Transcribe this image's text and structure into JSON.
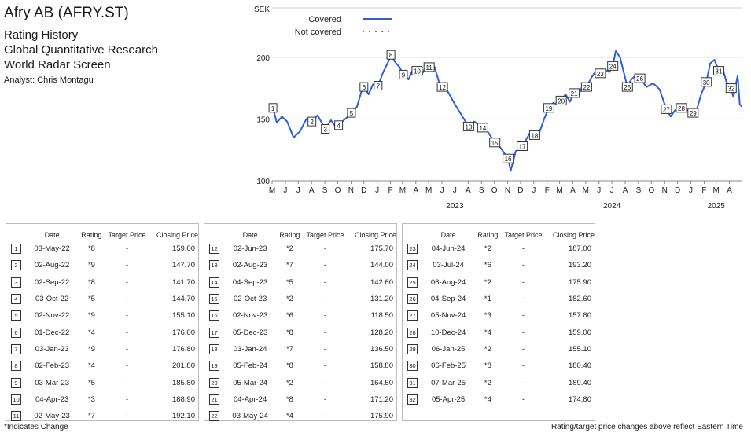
{
  "header": {
    "title": "Afry AB (AFRY.ST)",
    "subtitle1": "Rating History",
    "subtitle2": "Global Quantitative Research",
    "subtitle3": "World Radar Screen",
    "analyst": "Analyst: Chris Montagu"
  },
  "table_headers": [
    "Date",
    "Rating",
    "Target Price",
    "Closing Price"
  ],
  "ratings": [
    {
      "n": "1",
      "date": "03-May-22",
      "rating": "*8",
      "target": "-",
      "close": "159.00"
    },
    {
      "n": "2",
      "date": "02-Aug-22",
      "rating": "*9",
      "target": "-",
      "close": "147.70"
    },
    {
      "n": "3",
      "date": "02-Sep-22",
      "rating": "*8",
      "target": "-",
      "close": "141.70"
    },
    {
      "n": "4",
      "date": "03-Oct-22",
      "rating": "*5",
      "target": "-",
      "close": "144.70"
    },
    {
      "n": "5",
      "date": "02-Nov-22",
      "rating": "*9",
      "target": "-",
      "close": "155.10"
    },
    {
      "n": "6",
      "date": "01-Dec-22",
      "rating": "*4",
      "target": "-",
      "close": "176.00"
    },
    {
      "n": "7",
      "date": "03-Jan-23",
      "rating": "*9",
      "target": "-",
      "close": "176.80"
    },
    {
      "n": "8",
      "date": "02-Feb-23",
      "rating": "*4",
      "target": "-",
      "close": "201.80"
    },
    {
      "n": "9",
      "date": "03-Mar-23",
      "rating": "*5",
      "target": "-",
      "close": "185.80"
    },
    {
      "n": "10",
      "date": "04-Apr-23",
      "rating": "*3",
      "target": "-",
      "close": "188.90"
    },
    {
      "n": "11",
      "date": "02-May-23",
      "rating": "*7",
      "target": "-",
      "close": "192.10"
    },
    {
      "n": "12",
      "date": "02-Jun-23",
      "rating": "*2",
      "target": "-",
      "close": "175.70"
    },
    {
      "n": "13",
      "date": "02-Aug-23",
      "rating": "*7",
      "target": "-",
      "close": "144.00"
    },
    {
      "n": "14",
      "date": "04-Sep-23",
      "rating": "*5",
      "target": "-",
      "close": "142.60"
    },
    {
      "n": "15",
      "date": "02-Oct-23",
      "rating": "*2",
      "target": "-",
      "close": "131.20"
    },
    {
      "n": "16",
      "date": "02-Nov-23",
      "rating": "*6",
      "target": "-",
      "close": "118.50"
    },
    {
      "n": "17",
      "date": "05-Dec-23",
      "rating": "*8",
      "target": "-",
      "close": "128.20"
    },
    {
      "n": "18",
      "date": "03-Jan-24",
      "rating": "*7",
      "target": "-",
      "close": "136.50"
    },
    {
      "n": "19",
      "date": "05-Feb-24",
      "rating": "*8",
      "target": "-",
      "close": "158.80"
    },
    {
      "n": "20",
      "date": "05-Mar-24",
      "rating": "*2",
      "target": "-",
      "close": "164.50"
    },
    {
      "n": "21",
      "date": "04-Apr-24",
      "rating": "*8",
      "target": "-",
      "close": "171.20"
    },
    {
      "n": "22",
      "date": "03-May-24",
      "rating": "*4",
      "target": "-",
      "close": "175.90"
    },
    {
      "n": "23",
      "date": "04-Jun-24",
      "rating": "*2",
      "target": "-",
      "close": "187.00"
    },
    {
      "n": "24",
      "date": "03-Jul-24",
      "rating": "*6",
      "target": "-",
      "close": "193.20"
    },
    {
      "n": "25",
      "date": "06-Aug-24",
      "rating": "*2",
      "target": "-",
      "close": "175.90"
    },
    {
      "n": "26",
      "date": "04-Sep-24",
      "rating": "*1",
      "target": "-",
      "close": "182.60"
    },
    {
      "n": "27",
      "date": "05-Nov-24",
      "rating": "*3",
      "target": "-",
      "close": "157.80"
    },
    {
      "n": "28",
      "date": "10-Dec-24",
      "rating": "*4",
      "target": "-",
      "close": "159.00"
    },
    {
      "n": "29",
      "date": "06-Jan-25",
      "rating": "*2",
      "target": "-",
      "close": "155.10"
    },
    {
      "n": "30",
      "date": "06-Feb-25",
      "rating": "*8",
      "target": "-",
      "close": "180.40"
    },
    {
      "n": "31",
      "date": "07-Mar-25",
      "rating": "*2",
      "target": "-",
      "close": "189.40"
    },
    {
      "n": "32",
      "date": "05-Apr-25",
      "rating": "*4",
      "target": "-",
      "close": "174.80"
    }
  ],
  "footer": {
    "left": "*Indicates Change",
    "right": "Rating/target price changes above reflect Eastern Time"
  },
  "chart_data": {
    "type": "line",
    "ylabel": "SEK",
    "ylim": [
      100,
      240
    ],
    "yticks": [
      100,
      150,
      200
    ],
    "xlim": [
      "2022-05-01",
      "2025-05-01"
    ],
    "month_ticks": [
      "M",
      "J",
      "J",
      "A",
      "S",
      "O",
      "N",
      "D",
      "J",
      "F",
      "M",
      "A",
      "M",
      "J",
      "J",
      "A",
      "S",
      "O",
      "N",
      "D",
      "J",
      "F",
      "M",
      "A",
      "M",
      "J",
      "J",
      "A",
      "S",
      "O",
      "N",
      "D",
      "J",
      "F",
      "M",
      "A"
    ],
    "year_labels": [
      {
        "label": "2023",
        "date": "2023-07-01"
      },
      {
        "label": "2024",
        "date": "2024-07-01"
      },
      {
        "label": "2025",
        "date": "2025-03-01"
      }
    ],
    "grid": "horizontal",
    "legend": [
      {
        "name": "Covered",
        "style": "solid",
        "color": "#2f5fd6"
      },
      {
        "name": "Not covered",
        "style": "dotted",
        "color": "#e3413a"
      }
    ],
    "legend_position": "top-left",
    "series": [
      {
        "name": "Covered",
        "color": "#2f5fd6",
        "points": [
          [
            "2022-05-03",
            159
          ],
          [
            "2022-05-12",
            147
          ],
          [
            "2022-05-24",
            152
          ],
          [
            "2022-06-05",
            148
          ],
          [
            "2022-06-20",
            135
          ],
          [
            "2022-07-05",
            140
          ],
          [
            "2022-07-20",
            150
          ],
          [
            "2022-08-02",
            148
          ],
          [
            "2022-08-15",
            153
          ],
          [
            "2022-09-02",
            142
          ],
          [
            "2022-09-15",
            149
          ],
          [
            "2022-09-30",
            142
          ],
          [
            "2022-10-03",
            145
          ],
          [
            "2022-10-15",
            149
          ],
          [
            "2022-10-25",
            152
          ],
          [
            "2022-11-02",
            155
          ],
          [
            "2022-11-15",
            160
          ],
          [
            "2022-11-25",
            172
          ],
          [
            "2022-12-01",
            176
          ],
          [
            "2022-12-12",
            170
          ],
          [
            "2022-12-22",
            178
          ],
          [
            "2023-01-03",
            177
          ],
          [
            "2023-01-15",
            188
          ],
          [
            "2023-01-25",
            195
          ],
          [
            "2023-02-02",
            202
          ],
          [
            "2023-02-12",
            196
          ],
          [
            "2023-02-22",
            192
          ],
          [
            "2023-03-03",
            186
          ],
          [
            "2023-03-15",
            182
          ],
          [
            "2023-03-25",
            190
          ],
          [
            "2023-04-04",
            189
          ],
          [
            "2023-04-15",
            186
          ],
          [
            "2023-04-25",
            193
          ],
          [
            "2023-05-02",
            192
          ],
          [
            "2023-05-15",
            192
          ],
          [
            "2023-05-25",
            180
          ],
          [
            "2023-06-02",
            176
          ],
          [
            "2023-06-15",
            172
          ],
          [
            "2023-07-01",
            162
          ],
          [
            "2023-07-15",
            154
          ],
          [
            "2023-08-02",
            144
          ],
          [
            "2023-08-15",
            148
          ],
          [
            "2023-09-04",
            143
          ],
          [
            "2023-09-15",
            140
          ],
          [
            "2023-10-02",
            131
          ],
          [
            "2023-10-15",
            127
          ],
          [
            "2023-10-25",
            122
          ],
          [
            "2023-11-02",
            118
          ],
          [
            "2023-11-08",
            108
          ],
          [
            "2023-11-20",
            124
          ],
          [
            "2023-12-05",
            128
          ],
          [
            "2023-12-15",
            134
          ],
          [
            "2023-12-25",
            140
          ],
          [
            "2024-01-03",
            137
          ],
          [
            "2024-01-15",
            140
          ],
          [
            "2024-01-25",
            150
          ],
          [
            "2024-02-05",
            159
          ],
          [
            "2024-02-15",
            163
          ],
          [
            "2024-02-25",
            162
          ],
          [
            "2024-03-05",
            165
          ],
          [
            "2024-03-15",
            170
          ],
          [
            "2024-03-25",
            164
          ],
          [
            "2024-04-04",
            171
          ],
          [
            "2024-04-15",
            170
          ],
          [
            "2024-04-25",
            178
          ],
          [
            "2024-05-03",
            176
          ],
          [
            "2024-05-15",
            184
          ],
          [
            "2024-05-25",
            189
          ],
          [
            "2024-06-04",
            187
          ],
          [
            "2024-06-15",
            190
          ],
          [
            "2024-06-25",
            188
          ],
          [
            "2024-07-03",
            193
          ],
          [
            "2024-07-10",
            205
          ],
          [
            "2024-07-20",
            200
          ],
          [
            "2024-08-06",
            176
          ],
          [
            "2024-08-15",
            182
          ],
          [
            "2024-08-25",
            185
          ],
          [
            "2024-09-04",
            183
          ],
          [
            "2024-09-20",
            176
          ],
          [
            "2024-10-05",
            179
          ],
          [
            "2024-10-20",
            174
          ],
          [
            "2024-11-05",
            158
          ],
          [
            "2024-11-15",
            152
          ],
          [
            "2024-11-25",
            157
          ],
          [
            "2024-12-10",
            159
          ],
          [
            "2024-12-20",
            158
          ],
          [
            "2025-01-06",
            155
          ],
          [
            "2025-01-15",
            158
          ],
          [
            "2025-01-25",
            170
          ],
          [
            "2025-02-06",
            180
          ],
          [
            "2025-02-15",
            195
          ],
          [
            "2025-02-25",
            198
          ],
          [
            "2025-03-07",
            189
          ],
          [
            "2025-03-15",
            192
          ],
          [
            "2025-03-25",
            180
          ],
          [
            "2025-04-05",
            175
          ],
          [
            "2025-04-10",
            168
          ],
          [
            "2025-04-20",
            185
          ],
          [
            "2025-04-25",
            162
          ],
          [
            "2025-04-30",
            160
          ]
        ]
      }
    ],
    "markers": [
      {
        "n": "1",
        "date": "2022-05-03",
        "value": 159
      },
      {
        "n": "2",
        "date": "2022-08-02",
        "value": 148
      },
      {
        "n": "3",
        "date": "2022-09-02",
        "value": 142
      },
      {
        "n": "4",
        "date": "2022-10-03",
        "value": 145
      },
      {
        "n": "5",
        "date": "2022-11-02",
        "value": 155
      },
      {
        "n": "6",
        "date": "2022-12-01",
        "value": 176
      },
      {
        "n": "7",
        "date": "2023-01-03",
        "value": 177
      },
      {
        "n": "8",
        "date": "2023-02-02",
        "value": 202
      },
      {
        "n": "9",
        "date": "2023-03-03",
        "value": 186
      },
      {
        "n": "10",
        "date": "2023-04-04",
        "value": 189
      },
      {
        "n": "11",
        "date": "2023-05-02",
        "value": 192
      },
      {
        "n": "12",
        "date": "2023-06-02",
        "value": 176
      },
      {
        "n": "13",
        "date": "2023-08-02",
        "value": 144
      },
      {
        "n": "14",
        "date": "2023-09-04",
        "value": 143
      },
      {
        "n": "15",
        "date": "2023-10-02",
        "value": 131
      },
      {
        "n": "16",
        "date": "2023-11-02",
        "value": 118
      },
      {
        "n": "17",
        "date": "2023-12-05",
        "value": 128
      },
      {
        "n": "18",
        "date": "2024-01-03",
        "value": 137
      },
      {
        "n": "19",
        "date": "2024-02-05",
        "value": 159
      },
      {
        "n": "20",
        "date": "2024-03-05",
        "value": 165
      },
      {
        "n": "21",
        "date": "2024-04-04",
        "value": 171
      },
      {
        "n": "22",
        "date": "2024-05-03",
        "value": 176
      },
      {
        "n": "23",
        "date": "2024-06-04",
        "value": 187
      },
      {
        "n": "24",
        "date": "2024-07-03",
        "value": 193
      },
      {
        "n": "25",
        "date": "2024-08-06",
        "value": 176
      },
      {
        "n": "26",
        "date": "2024-09-04",
        "value": 183
      },
      {
        "n": "27",
        "date": "2024-11-05",
        "value": 158
      },
      {
        "n": "28",
        "date": "2024-12-10",
        "value": 159
      },
      {
        "n": "29",
        "date": "2025-01-06",
        "value": 155
      },
      {
        "n": "30",
        "date": "2025-02-06",
        "value": 180
      },
      {
        "n": "31",
        "date": "2025-03-07",
        "value": 189
      },
      {
        "n": "32",
        "date": "2025-04-05",
        "value": 175
      }
    ]
  }
}
